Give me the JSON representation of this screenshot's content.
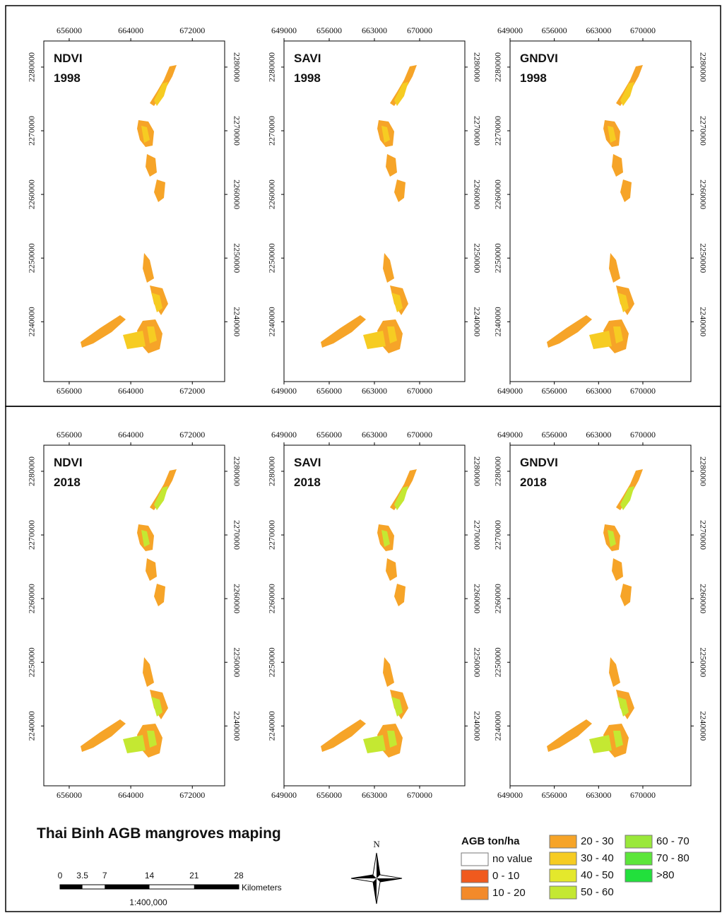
{
  "title": "Thai Binh AGB mangroves maping",
  "panels": [
    {
      "index": "NDVI",
      "year": "1998",
      "xlim": [
        652700,
        676200
      ],
      "ylim": [
        2230600,
        2284100
      ],
      "x_ticks": [
        656000,
        664000,
        672000
      ],
      "y_ticks": [
        2280000,
        2270000,
        2260000,
        2250000,
        2240000
      ]
    },
    {
      "index": "SAVI",
      "year": "1998",
      "xlim": [
        649000,
        677000
      ],
      "ylim": [
        2230600,
        2284100
      ],
      "x_ticks": [
        649000,
        656000,
        663000,
        670000
      ],
      "y_ticks": [
        2280000,
        2270000,
        2260000,
        2250000,
        2240000
      ]
    },
    {
      "index": "GNDVI",
      "year": "1998",
      "xlim": [
        649000,
        677600
      ],
      "ylim": [
        2230600,
        2284100
      ],
      "x_ticks": [
        649000,
        656000,
        663000,
        670000
      ],
      "y_ticks": [
        2280000,
        2270000,
        2260000,
        2250000,
        2240000
      ]
    },
    {
      "index": "NDVI",
      "year": "2018",
      "xlim": [
        652700,
        676200
      ],
      "ylim": [
        2230600,
        2284100
      ],
      "x_ticks": [
        656000,
        664000,
        672000
      ],
      "y_ticks": [
        2280000,
        2270000,
        2260000,
        2250000,
        2240000
      ]
    },
    {
      "index": "SAVI",
      "year": "2018",
      "xlim": [
        649000,
        677000
      ],
      "ylim": [
        2230600,
        2284100
      ],
      "x_ticks": [
        649000,
        656000,
        663000,
        670000
      ],
      "y_ticks": [
        2280000,
        2270000,
        2260000,
        2250000,
        2240000
      ]
    },
    {
      "index": "GNDVI",
      "year": "2018",
      "xlim": [
        649000,
        677600
      ],
      "ylim": [
        2230600,
        2284100
      ],
      "x_ticks": [
        649000,
        656000,
        663000,
        670000
      ],
      "y_ticks": [
        2280000,
        2270000,
        2260000,
        2250000,
        2240000
      ]
    }
  ],
  "legend": {
    "title": "AGB ton/ha",
    "items": [
      {
        "label": "no value",
        "color": "#ffffff"
      },
      {
        "label": "0 - 10",
        "color": "#f05a1e"
      },
      {
        "label": "10 - 20",
        "color": "#f38a2a"
      },
      {
        "label": "20 - 30",
        "color": "#f6a428"
      },
      {
        "label": "30 - 40",
        "color": "#f6cc22"
      },
      {
        "label": "40 - 50",
        "color": "#e4e82c"
      },
      {
        "label": "50 - 60",
        "color": "#c4e832"
      },
      {
        "label": "60 - 70",
        "color": "#9ae83a"
      },
      {
        "label": "70 - 80",
        "color": "#5ce63a"
      },
      {
        "label": ">80",
        "color": "#22e03c"
      }
    ]
  },
  "scale_bar": {
    "ticks": [
      0,
      3.5,
      7,
      14,
      21,
      28
    ],
    "unit": "Kilometers",
    "ratio": "1:400,000"
  },
  "north": "N"
}
